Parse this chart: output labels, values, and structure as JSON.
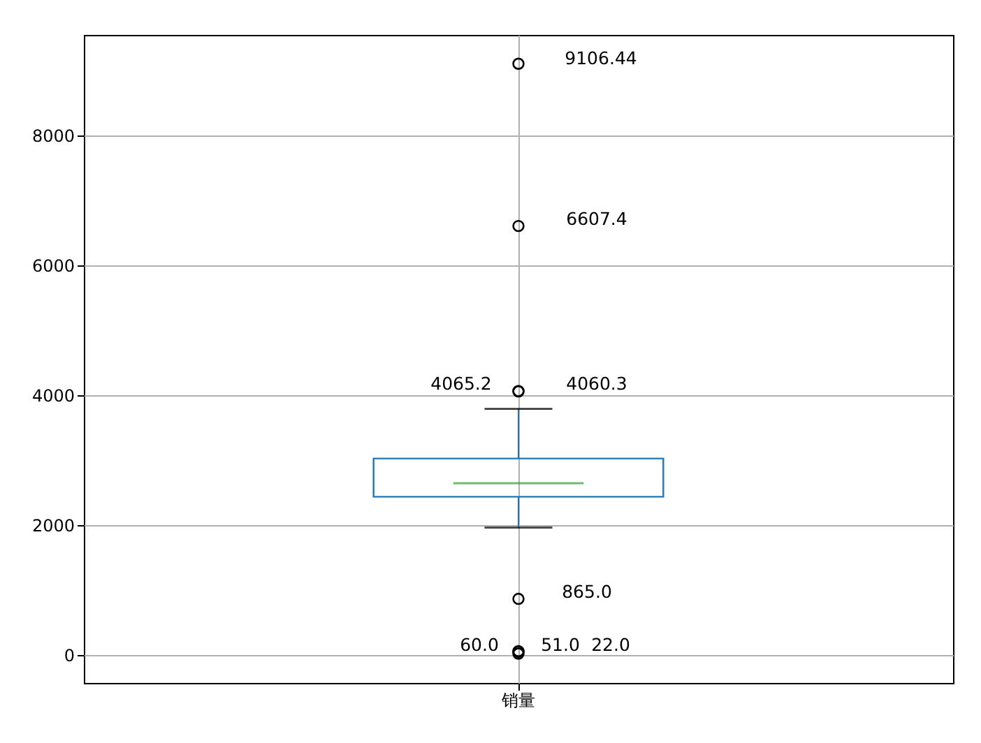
{
  "chart_data": {
    "type": "box",
    "categories": [
      "销量"
    ],
    "boxes": [
      {
        "low": 1963,
        "q1": 2437,
        "median": 2645,
        "q3": 3026,
        "high": 3792,
        "outliers": [
          9106.44,
          6607.4,
          4065.2,
          4060.3,
          865.0,
          60.0,
          51.0,
          22.0
        ]
      }
    ],
    "ylim": [
      -430,
      9550
    ],
    "yticks": [
      0,
      2000,
      4000,
      6000,
      8000
    ],
    "grid": true,
    "annotations": [
      "9106.44",
      "6607.4",
      "4065.2",
      "4060.3",
      "865.0",
      "60.0",
      "51.0",
      "22.0"
    ]
  }
}
